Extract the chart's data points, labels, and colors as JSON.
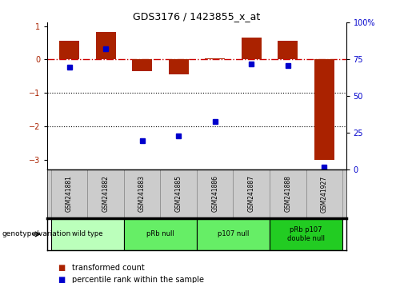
{
  "title": "GDS3176 / 1423855_x_at",
  "samples": [
    "GSM241881",
    "GSM241882",
    "GSM241883",
    "GSM241885",
    "GSM241886",
    "GSM241887",
    "GSM241888",
    "GSM241927"
  ],
  "bar_values": [
    0.55,
    0.82,
    -0.35,
    -0.45,
    0.04,
    0.65,
    0.55,
    -3.0
  ],
  "scatter_pct": [
    70,
    82,
    20,
    23,
    33,
    72,
    71,
    2
  ],
  "bar_color": "#aa2200",
  "scatter_color": "#0000cc",
  "hline_color": "#cc0000",
  "dotted_lines": [
    -1,
    -2
  ],
  "ylim": [
    -3.3,
    1.1
  ],
  "ylim_right": [
    0,
    100
  ],
  "yticks_left": [
    -3,
    -2,
    -1,
    0,
    1
  ],
  "yticks_right": [
    0,
    25,
    50,
    75,
    100
  ],
  "group_info": [
    {
      "label": "wild type",
      "start": 0,
      "end": 1,
      "color": "#bbffbb"
    },
    {
      "label": "pRb null",
      "start": 2,
      "end": 3,
      "color": "#66ee66"
    },
    {
      "label": "p107 null",
      "start": 4,
      "end": 5,
      "color": "#66ee66"
    },
    {
      "label": "pRb p107\ndouble null",
      "start": 6,
      "end": 7,
      "color": "#22cc22"
    }
  ],
  "background_color": "#ffffff"
}
